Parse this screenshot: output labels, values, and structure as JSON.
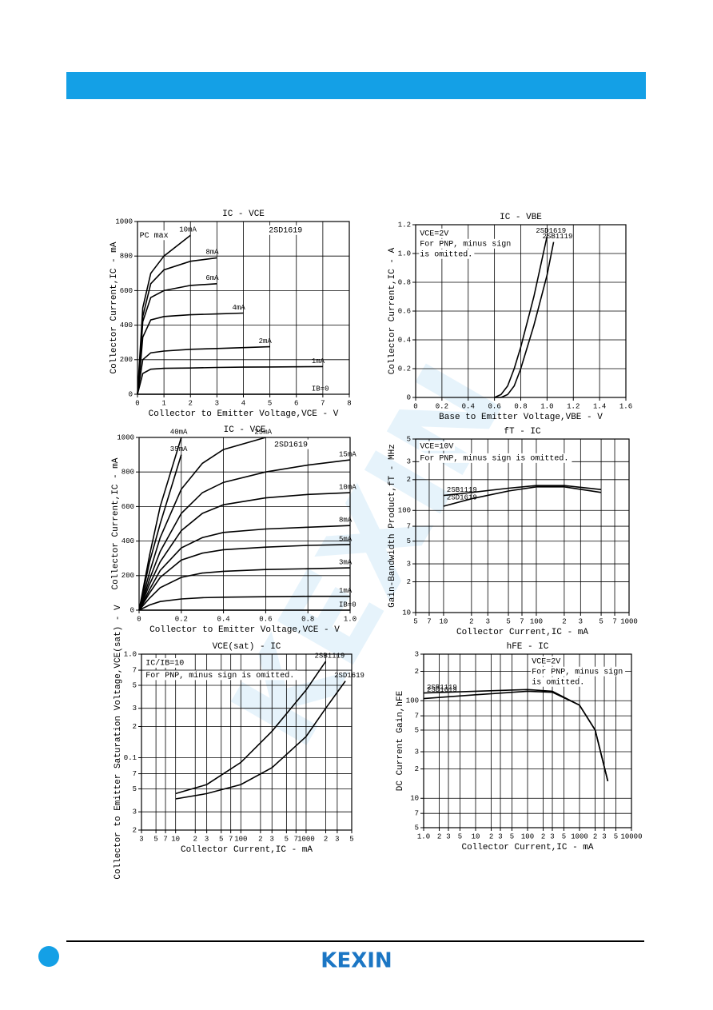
{
  "chart_data": [
    {
      "type": "line",
      "title": "IC - VCE",
      "xlabel": "Collector to Emitter Voltage,VCE - V",
      "ylabel": "Collector Current,IC - mA",
      "annotations": [
        "2SD1619",
        "PC max"
      ],
      "x": [
        0,
        0.1,
        0.2,
        0.5,
        1,
        2,
        3,
        4,
        5,
        7
      ],
      "series": [
        {
          "name": "10mA",
          "color": "#000000",
          "values": [
            0,
            250,
            500,
            700,
            800,
            920,
            null,
            null,
            null,
            null
          ]
        },
        {
          "name": "8mA",
          "color": "#000000",
          "values": [
            0,
            200,
            450,
            640,
            720,
            770,
            790,
            null,
            null,
            null
          ]
        },
        {
          "name": "6mA",
          "color": "#000000",
          "values": [
            0,
            180,
            420,
            560,
            600,
            630,
            640,
            null,
            null,
            null
          ]
        },
        {
          "name": "4mA",
          "color": "#000000",
          "values": [
            0,
            150,
            330,
            430,
            450,
            460,
            465,
            470,
            null,
            null
          ]
        },
        {
          "name": "2mA",
          "color": "#000000",
          "values": [
            0,
            100,
            200,
            240,
            250,
            260,
            265,
            270,
            275,
            null
          ]
        },
        {
          "name": "1mA",
          "color": "#000000",
          "values": [
            0,
            60,
            120,
            145,
            150,
            152,
            155,
            157,
            158,
            160
          ]
        },
        {
          "name": "IB=0",
          "color": "#000000",
          "values": [
            0,
            0,
            0,
            0,
            0,
            0,
            0,
            0,
            0,
            0
          ]
        }
      ],
      "xlim": [
        0,
        8
      ],
      "ylim": [
        0,
        1000
      ],
      "xticks": [
        0,
        1,
        2,
        3,
        4,
        5,
        6,
        7,
        8
      ],
      "yticks": [
        0,
        200,
        400,
        600,
        800,
        1000
      ],
      "grid": true
    },
    {
      "type": "line",
      "title": "IC - VBE",
      "xlabel": "Base to Emitter Voltage,VBE - V",
      "ylabel": "Collector Current,IC - A",
      "annotations": [
        "VCE=2V",
        "For PNP, minus sign",
        "is omitted."
      ],
      "x": [
        0.6,
        0.65,
        0.7,
        0.75,
        0.8,
        0.9,
        1.0,
        1.05
      ],
      "series": [
        {
          "name": "2SD1619",
          "color": "#000000",
          "values": [
            0,
            0.02,
            0.08,
            0.2,
            0.35,
            0.7,
            1.12,
            null
          ]
        },
        {
          "name": "2SB1119",
          "color": "#000000",
          "values": [
            0,
            0,
            0.02,
            0.08,
            0.2,
            0.5,
            0.85,
            1.08
          ]
        }
      ],
      "xlim": [
        0,
        1.6
      ],
      "ylim": [
        0,
        1.2
      ],
      "xticks": [
        0,
        0.2,
        0.4,
        0.6,
        0.8,
        {
          "value": 1,
          "label": "1.0"
        },
        1.2,
        1.4,
        1.6
      ],
      "yticks": [
        0,
        0.2,
        0.4,
        0.6,
        0.8,
        {
          "value": 1,
          "label": "1.0"
        },
        1.2
      ],
      "grid": true
    },
    {
      "type": "line",
      "title": "IC - VCE",
      "xlabel": "Collector to Emitter Voltage,VCE - V",
      "ylabel": "Collector Current,IC - mA",
      "annotations": [
        "2SD1619"
      ],
      "x": [
        0,
        0.05,
        0.1,
        0.2,
        0.3,
        0.4,
        0.6,
        0.8,
        1.0
      ],
      "series": [
        {
          "name": "40mA",
          "color": "#000000",
          "values": [
            0,
            320,
            600,
            1000,
            null,
            null,
            null,
            null,
            null
          ]
        },
        {
          "name": "35mA",
          "color": "#000000",
          "values": [
            0,
            280,
            500,
            900,
            null,
            null,
            null,
            null,
            null
          ]
        },
        {
          "name": "25mA",
          "color": "#000000",
          "values": [
            0,
            220,
            420,
            700,
            850,
            930,
            1000,
            null,
            null
          ]
        },
        {
          "name": "15mA",
          "color": "#000000",
          "values": [
            0,
            180,
            340,
            560,
            680,
            740,
            800,
            840,
            870
          ]
        },
        {
          "name": "10mA",
          "color": "#000000",
          "values": [
            0,
            150,
            280,
            460,
            560,
            610,
            650,
            670,
            680
          ]
        },
        {
          "name": "8mA",
          "color": "#000000",
          "values": [
            0,
            120,
            230,
            360,
            420,
            450,
            470,
            480,
            490
          ]
        },
        {
          "name": "5mA",
          "color": "#000000",
          "values": [
            0,
            100,
            190,
            290,
            330,
            350,
            365,
            375,
            380
          ]
        },
        {
          "name": "3mA",
          "color": "#000000",
          "values": [
            0,
            70,
            130,
            190,
            215,
            225,
            235,
            240,
            245
          ]
        },
        {
          "name": "1mA",
          "color": "#000000",
          "values": [
            0,
            30,
            50,
            65,
            72,
            75,
            78,
            80,
            80
          ]
        },
        {
          "name": "IB=0",
          "color": "#000000",
          "values": [
            0,
            0,
            0,
            0,
            0,
            0,
            0,
            0,
            0
          ]
        }
      ],
      "xlim": [
        0,
        1
      ],
      "ylim": [
        0,
        1000
      ],
      "xticks": [
        0,
        0.2,
        0.4,
        0.6,
        0.8,
        {
          "value": 1,
          "label": "1.0"
        }
      ],
      "yticks": [
        0,
        200,
        400,
        600,
        800,
        1000
      ],
      "grid": true
    },
    {
      "type": "line",
      "title": "fT - IC",
      "xlabel": "Collector Current,IC - mA",
      "ylabel": "Gain-Bandwidth Product,fT - MHz",
      "annotations": [
        "VCE=10V",
        "For PNP, minus sign is omitted."
      ],
      "x": [
        10,
        20,
        50,
        100,
        200,
        500
      ],
      "series": [
        {
          "name": "2SB1119",
          "color": "#000000",
          "values": [
            140,
            150,
            165,
            175,
            175,
            160
          ]
        },
        {
          "name": "2SD1619",
          "color": "#000000",
          "values": [
            110,
            130,
            155,
            170,
            170,
            150
          ]
        }
      ],
      "xlim": [
        5,
        1000
      ],
      "ylim": [
        10,
        500
      ],
      "xscale": "log",
      "yscale": "log",
      "xticks": [
        5,
        7,
        10,
        {
          "value": 20,
          "label": "2"
        },
        {
          "value": 30,
          "label": "3"
        },
        {
          "value": 50,
          "label": "5"
        },
        {
          "value": 70,
          "label": "7"
        },
        100,
        {
          "value": 200,
          "label": "2"
        },
        {
          "value": 300,
          "label": "3"
        },
        {
          "value": 500,
          "label": "5"
        },
        {
          "value": 700,
          "label": "7"
        },
        1000
      ],
      "yticks": [
        10,
        {
          "value": 20,
          "label": "2"
        },
        {
          "value": 30,
          "label": "3"
        },
        {
          "value": 50,
          "label": "5"
        },
        {
          "value": 70,
          "label": "7"
        },
        100,
        {
          "value": 200,
          "label": "2"
        },
        {
          "value": 300,
          "label": "3"
        },
        {
          "value": 500,
          "label": "5"
        }
      ],
      "grid": true
    },
    {
      "type": "line",
      "title": "VCE(sat) - IC",
      "xlabel": "Collector Current,IC - mA",
      "ylabel": "Collector to Emitter Saturation Voltage,VCE(sat) - V",
      "annotations": [
        "IC/IB=10",
        "For PNP, minus sign is omitted."
      ],
      "x": [
        10,
        30,
        100,
        300,
        1000,
        2000,
        4000
      ],
      "series": [
        {
          "name": "2SB1119",
          "color": "#000000",
          "values": [
            0.045,
            0.055,
            0.09,
            0.18,
            0.45,
            0.85,
            null
          ]
        },
        {
          "name": "2SD1619",
          "color": "#000000",
          "values": [
            0.04,
            0.045,
            0.055,
            0.08,
            0.16,
            0.3,
            0.55
          ]
        }
      ],
      "xlim": [
        3,
        5000
      ],
      "ylim": [
        0.02,
        1
      ],
      "xscale": "log",
      "yscale": "log",
      "xticks": [
        3,
        5,
        7,
        10,
        {
          "value": 20,
          "label": "2"
        },
        {
          "value": 30,
          "label": "3"
        },
        {
          "value": 50,
          "label": "5"
        },
        {
          "value": 70,
          "label": "7"
        },
        100,
        {
          "value": 200,
          "label": "2"
        },
        {
          "value": 300,
          "label": "3"
        },
        {
          "value": 500,
          "label": "5"
        },
        {
          "value": 700,
          "label": "7"
        },
        1000,
        {
          "value": 2000,
          "label": "2"
        },
        {
          "value": 3000,
          "label": "3"
        },
        {
          "value": 5000,
          "label": "5"
        }
      ],
      "yticks": [
        {
          "value": 0.02,
          "label": "2"
        },
        {
          "value": 0.03,
          "label": "3"
        },
        {
          "value": 0.05,
          "label": "5"
        },
        {
          "value": 0.07,
          "label": "7"
        },
        0.1,
        {
          "value": 0.2,
          "label": "2"
        },
        {
          "value": 0.3,
          "label": "3"
        },
        {
          "value": 0.5,
          "label": "5"
        },
        {
          "value": 0.7,
          "label": "7"
        },
        {
          "value": 1,
          "label": "1.0"
        }
      ],
      "grid": true
    },
    {
      "type": "line",
      "title": "hFE - IC",
      "xlabel": "Collector Current,IC - mA",
      "ylabel": "DC Current Gain,hFE",
      "annotations": [
        "VCE=2V",
        "For PNP, minus sign",
        "is omitted."
      ],
      "x": [
        1,
        10,
        100,
        300,
        1000,
        2000,
        3500
      ],
      "series": [
        {
          "name": "2SB1119",
          "color": "#000000",
          "values": [
            120,
            125,
            130,
            125,
            90,
            50,
            15
          ]
        },
        {
          "name": "2SD1619",
          "color": "#000000",
          "values": [
            105,
            115,
            125,
            122,
            90,
            50,
            15
          ]
        }
      ],
      "xlim": [
        1,
        10000
      ],
      "ylim": [
        5,
        300
      ],
      "xscale": "log",
      "yscale": "log",
      "xticks": [
        {
          "value": 1,
          "label": "1.0"
        },
        2,
        3,
        5,
        10,
        {
          "value": 20,
          "label": "2"
        },
        {
          "value": 30,
          "label": "3"
        },
        {
          "value": 50,
          "label": "5"
        },
        100,
        {
          "value": 200,
          "label": "2"
        },
        {
          "value": 300,
          "label": "3"
        },
        {
          "value": 500,
          "label": "5"
        },
        1000,
        {
          "value": 2000,
          "label": "2"
        },
        {
          "value": 3000,
          "label": "3"
        },
        {
          "value": 5000,
          "label": "5"
        },
        10000
      ],
      "yticks": [
        5,
        7,
        10,
        {
          "value": 20,
          "label": "2"
        },
        {
          "value": 30,
          "label": "3"
        },
        {
          "value": 50,
          "label": "5"
        },
        {
          "value": 70,
          "label": "7"
        },
        100,
        {
          "value": 200,
          "label": "2"
        },
        {
          "value": 300,
          "label": "3"
        }
      ],
      "grid": true
    }
  ],
  "watermark": "KEXIN",
  "footer": {
    "logo": "KEXIN"
  }
}
